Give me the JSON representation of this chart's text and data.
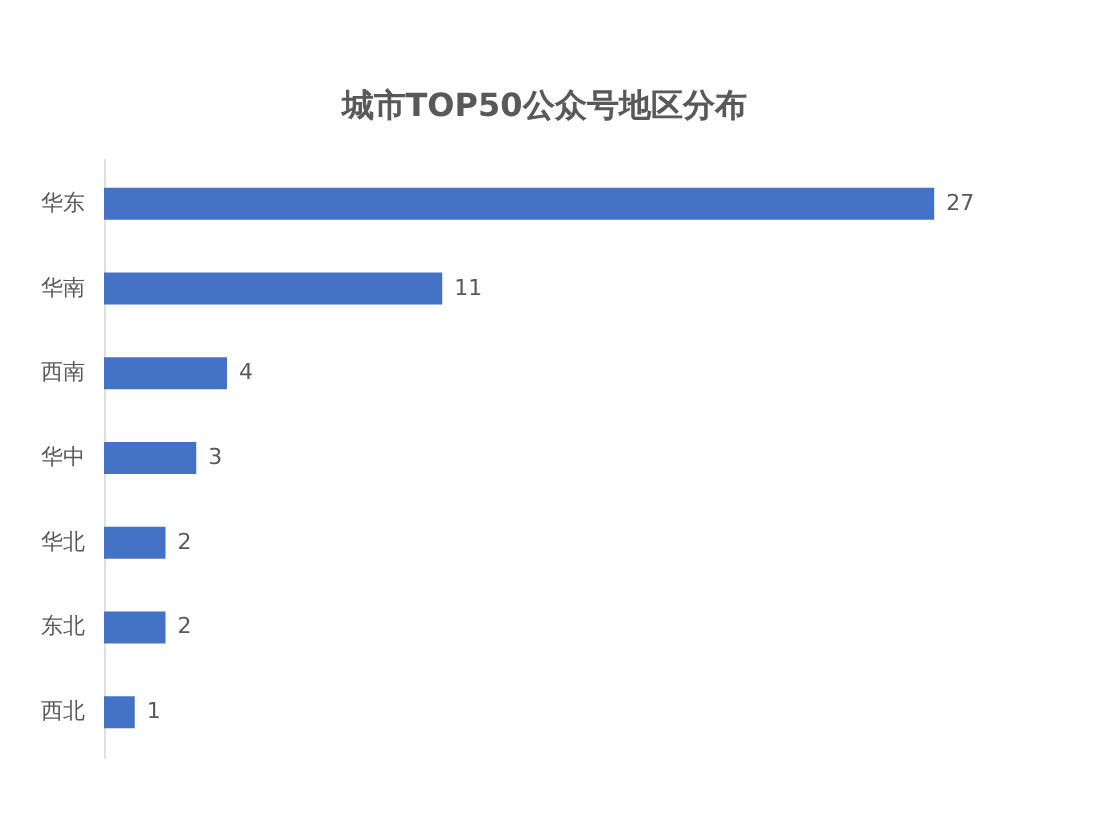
{
  "chart_data": {
    "type": "bar",
    "orientation": "horizontal",
    "title": "城市TOP50公众号地区分布",
    "categories": [
      "华东",
      "华南",
      "西南",
      "华中",
      "华北",
      "东北",
      "西北"
    ],
    "values": [
      27,
      11,
      4,
      3,
      2,
      2,
      1
    ],
    "color": "#4472c4",
    "data_labels": true,
    "grid": false
  }
}
